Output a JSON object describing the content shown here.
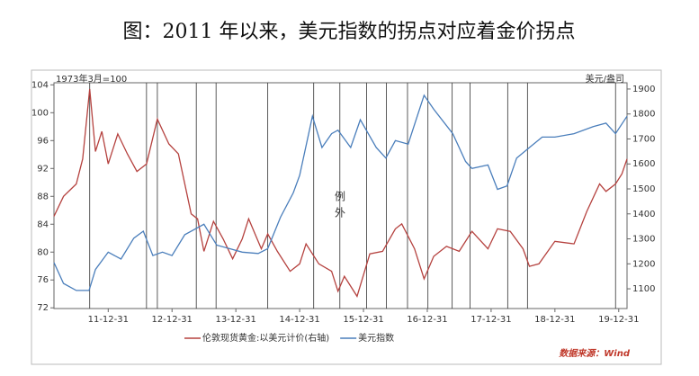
{
  "chart_data": {
    "type": "line",
    "title": "图：2011 年以来，美元指数的拐点对应着金价拐点",
    "y_label": "1973年3月=100",
    "y2_label": "美元/盎司",
    "annotation": "例外",
    "source": "数据来源：Wind",
    "xlim": [
      2011.15,
      2020.13
    ],
    "xticks": [
      {
        "value": 2012.0,
        "label": "11-12-31"
      },
      {
        "value": 2013.0,
        "label": "12-12-31"
      },
      {
        "value": 2014.0,
        "label": "13-12-31"
      },
      {
        "value": 2015.0,
        "label": "14-12-31"
      },
      {
        "value": 2016.0,
        "label": "15-12-31"
      },
      {
        "value": 2017.0,
        "label": "16-12-31"
      },
      {
        "value": 2018.0,
        "label": "17-12-31"
      },
      {
        "value": 2019.0,
        "label": "18-12-31"
      },
      {
        "value": 2020.0,
        "label": "19-12-31"
      }
    ],
    "ylim": [
      71.9,
      104.3
    ],
    "yticks": [
      72,
      76,
      80,
      84,
      88,
      92,
      96,
      100,
      104
    ],
    "y2lim": [
      1021,
      1925
    ],
    "y2ticks": [
      1100,
      1200,
      1300,
      1400,
      1500,
      1600,
      1700,
      1800,
      1900
    ],
    "vlines": [
      2011.71,
      2012.6,
      2012.77,
      2013.38,
      2013.69,
      2014.5,
      2015.22,
      2015.63,
      2016.05,
      2016.36,
      2016.69,
      2017.01,
      2017.39,
      2017.67,
      2018.26,
      2018.57,
      2019.95
    ],
    "series": [
      {
        "name": "伦敦现货黄金:以美元计价(右轴)",
        "color": "#b5423f",
        "axis": "y2",
        "x": [
          2011.15,
          2011.3,
          2011.5,
          2011.6,
          2011.71,
          2011.8,
          2011.9,
          2012.0,
          2012.15,
          2012.3,
          2012.45,
          2012.6,
          2012.77,
          2012.95,
          2013.1,
          2013.3,
          2013.4,
          2013.5,
          2013.65,
          2013.8,
          2013.95,
          2014.1,
          2014.2,
          2014.4,
          2014.5,
          2014.65,
          2014.85,
          2015.0,
          2015.1,
          2015.3,
          2015.5,
          2015.6,
          2015.7,
          2015.9,
          2016.1,
          2016.3,
          2016.5,
          2016.6,
          2016.8,
          2016.95,
          2017.1,
          2017.3,
          2017.5,
          2017.7,
          2017.95,
          2018.1,
          2018.3,
          2018.5,
          2018.6,
          2018.75,
          2019.0,
          2019.3,
          2019.5,
          2019.7,
          2019.8,
          2019.95,
          2020.05,
          2020.13
        ],
        "values": [
          1390,
          1470,
          1520,
          1620,
          1900,
          1650,
          1730,
          1600,
          1720,
          1640,
          1570,
          1600,
          1780,
          1680,
          1640,
          1400,
          1380,
          1250,
          1370,
          1300,
          1220,
          1300,
          1380,
          1260,
          1320,
          1250,
          1170,
          1200,
          1280,
          1200,
          1170,
          1090,
          1150,
          1070,
          1240,
          1250,
          1340,
          1360,
          1260,
          1140,
          1230,
          1270,
          1250,
          1330,
          1260,
          1340,
          1330,
          1260,
          1190,
          1200,
          1290,
          1280,
          1410,
          1520,
          1490,
          1520,
          1560,
          1620
        ]
      },
      {
        "name": "美元指数",
        "color": "#4a7ebb",
        "x": [
          2011.15,
          2011.3,
          2011.5,
          2011.7,
          2011.8,
          2012.0,
          2012.2,
          2012.4,
          2012.55,
          2012.7,
          2012.85,
          2013.0,
          2013.2,
          2013.5,
          2013.7,
          2013.9,
          2014.1,
          2014.35,
          2014.5,
          2014.7,
          2014.9,
          2015.0,
          2015.2,
          2015.35,
          2015.5,
          2015.6,
          2015.8,
          2015.95,
          2016.2,
          2016.35,
          2016.5,
          2016.7,
          2016.95,
          2017.1,
          2017.4,
          2017.6,
          2017.7,
          2017.95,
          2018.1,
          2018.25,
          2018.4,
          2018.6,
          2018.8,
          2019.0,
          2019.3,
          2019.6,
          2019.8,
          2019.95,
          2020.13
        ],
        "values": [
          78.5,
          75.5,
          74.5,
          74.5,
          77.5,
          80,
          79,
          82,
          83,
          79.5,
          80,
          79.5,
          82.5,
          84,
          81,
          80.5,
          80,
          79.8,
          80.5,
          85,
          88.5,
          91,
          99.5,
          95,
          97,
          97.5,
          95,
          99,
          95,
          93.5,
          96,
          95.5,
          102.5,
          100.5,
          97,
          93,
          92,
          92.5,
          89,
          89.5,
          93.5,
          95,
          96.5,
          96.5,
          97,
          98,
          98.5,
          97,
          99.5
        ]
      }
    ]
  }
}
